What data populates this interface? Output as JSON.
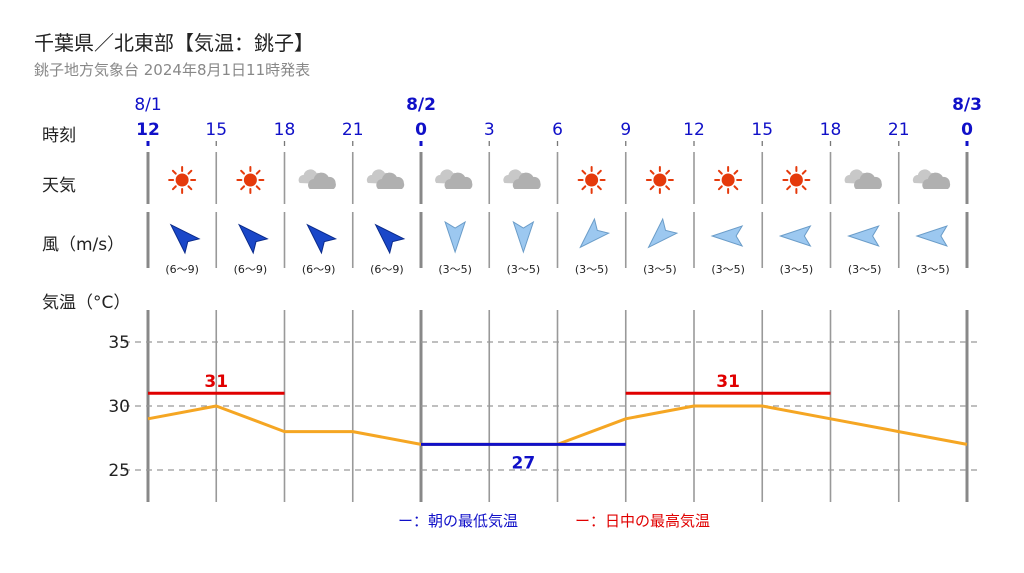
{
  "header": {
    "title": "千葉県／北東部【気温：銚子】",
    "subtitle": "銚子地方気象台 2024年8月1日11時発表"
  },
  "labels": {
    "time": "時刻",
    "weather": "天気",
    "wind": "風（m/s）",
    "temp": "気温（°C）"
  },
  "legend": {
    "min_label": "ー：朝の最低気温",
    "max_label": "ー：日中の最高気温",
    "min_color": "#1010c8",
    "max_color": "#e00000"
  },
  "colors": {
    "temp_line": "#f5a623",
    "sun": "#e53a0c",
    "cloud": "#b0b0b0",
    "wind_strong": "#1a47c8",
    "wind_light": "#9cc8f0",
    "date": "#1010c8"
  },
  "chart_data": {
    "type": "line",
    "date_labels": [
      {
        "index": 0,
        "text": "8/1"
      },
      {
        "index": 4,
        "text": "8/2"
      },
      {
        "index": 12,
        "text": "8/3"
      }
    ],
    "hours": [
      "12",
      "15",
      "18",
      "21",
      "0",
      "3",
      "6",
      "9",
      "12",
      "15",
      "18",
      "21",
      "0"
    ],
    "weather": [
      "sun",
      "sun",
      "cloud",
      "cloud",
      "cloud",
      "cloud",
      "sun",
      "sun",
      "sun",
      "sun",
      "cloud",
      "cloud"
    ],
    "wind": [
      {
        "dir": "SW",
        "speed": "(6〜9)",
        "strong": true
      },
      {
        "dir": "SW",
        "speed": "(6〜9)",
        "strong": true
      },
      {
        "dir": "SW",
        "speed": "(6〜9)",
        "strong": true
      },
      {
        "dir": "SW",
        "speed": "(6〜9)",
        "strong": true
      },
      {
        "dir": "N",
        "speed": "(3〜5)",
        "strong": false
      },
      {
        "dir": "N",
        "speed": "(3〜5)",
        "strong": false
      },
      {
        "dir": "NE",
        "speed": "(3〜5)",
        "strong": false
      },
      {
        "dir": "NE",
        "speed": "(3〜5)",
        "strong": false
      },
      {
        "dir": "E",
        "speed": "(3〜5)",
        "strong": false
      },
      {
        "dir": "E",
        "speed": "(3〜5)",
        "strong": false
      },
      {
        "dir": "E",
        "speed": "(3〜5)",
        "strong": false
      },
      {
        "dir": "E",
        "speed": "(3〜5)",
        "strong": false
      }
    ],
    "yticks": [
      25,
      30,
      35
    ],
    "ylim": [
      22.5,
      37.5
    ],
    "temperature": [
      29,
      30,
      28,
      28,
      27,
      27,
      27,
      29,
      30,
      30,
      29,
      28,
      27
    ],
    "max_temps": [
      {
        "value": 31,
        "label": "31",
        "from": 0,
        "to": 2
      },
      {
        "value": 31,
        "label": "31",
        "from": 7,
        "to": 10
      }
    ],
    "min_temps": [
      {
        "value": 27,
        "label": "27",
        "from": 4,
        "to": 7
      }
    ]
  }
}
